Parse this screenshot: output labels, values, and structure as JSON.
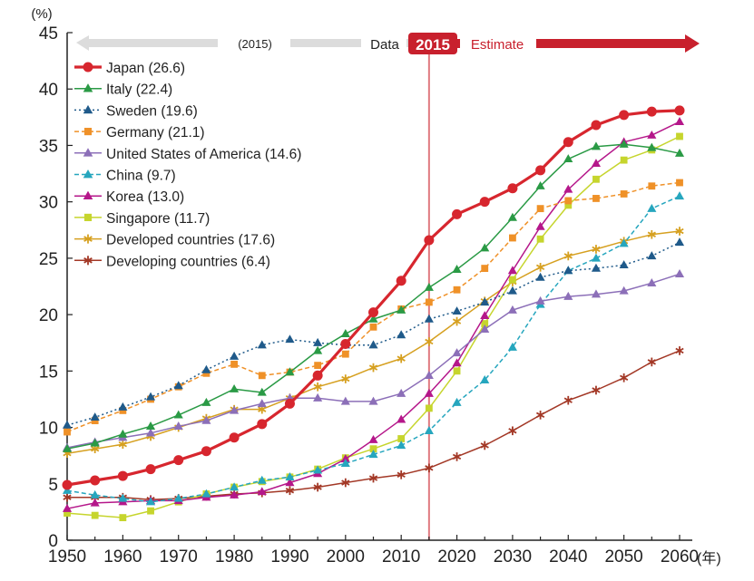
{
  "chart_data": {
    "type": "line",
    "title": "",
    "ylabel": "(%)",
    "xlabel": "(年)",
    "ylim": [
      0,
      45
    ],
    "xlim": [
      1950,
      2060
    ],
    "x_ticks": [
      "1950",
      "1960",
      "1970",
      "1980",
      "1990",
      "2000",
      "2010",
      "2020",
      "2030",
      "2040",
      "2050",
      "2060"
    ],
    "y_ticks": [
      "0",
      "5",
      "10",
      "15",
      "20",
      "25",
      "30",
      "35",
      "40",
      "45"
    ],
    "grid": false,
    "legend_position": "top-left",
    "divider": {
      "year": 2015,
      "label": "2015"
    },
    "banner": {
      "left_label": "(2015)",
      "data_label": "Data",
      "estimate_label": "Estimate"
    },
    "x": [
      1950,
      1955,
      1960,
      1965,
      1970,
      1975,
      1980,
      1985,
      1990,
      1995,
      2000,
      2005,
      2010,
      2015,
      2020,
      2025,
      2030,
      2035,
      2040,
      2045,
      2050,
      2055,
      2060
    ],
    "series": [
      {
        "name": "Japan (26.6)",
        "color": "#d7262e",
        "marker": "circle",
        "dash": "solid",
        "width": 3.2,
        "values": [
          4.9,
          5.3,
          5.7,
          6.3,
          7.1,
          7.9,
          9.1,
          10.3,
          12.1,
          14.6,
          17.4,
          20.2,
          23.0,
          26.6,
          28.9,
          30.0,
          31.2,
          32.8,
          35.3,
          36.8,
          37.7,
          38.0,
          38.1
        ]
      },
      {
        "name": "Italy (22.4)",
        "color": "#2a9a45",
        "marker": "triangle",
        "dash": "solid",
        "width": 1.5,
        "values": [
          8.1,
          8.6,
          9.4,
          10.1,
          11.1,
          12.2,
          13.4,
          13.1,
          14.9,
          16.8,
          18.3,
          19.6,
          20.4,
          22.4,
          24.0,
          25.9,
          28.6,
          31.4,
          33.8,
          34.9,
          35.1,
          34.8,
          34.3
        ]
      },
      {
        "name": "Sweden (19.6)",
        "color": "#1f5a8a",
        "marker": "triangle",
        "dash": "dotted",
        "width": 1.5,
        "values": [
          10.2,
          10.9,
          11.8,
          12.7,
          13.7,
          15.1,
          16.3,
          17.3,
          17.8,
          17.5,
          17.3,
          17.3,
          18.2,
          19.6,
          20.3,
          21.1,
          22.1,
          23.3,
          23.9,
          24.1,
          24.4,
          25.2,
          26.4
        ]
      },
      {
        "name": "Germany (21.1)",
        "color": "#ef9128",
        "marker": "square",
        "dash": "dashed",
        "width": 1.5,
        "values": [
          9.6,
          10.6,
          11.5,
          12.5,
          13.6,
          14.8,
          15.6,
          14.6,
          14.9,
          15.5,
          16.5,
          18.9,
          20.5,
          21.1,
          22.2,
          24.1,
          26.8,
          29.4,
          30.1,
          30.3,
          30.7,
          31.4,
          31.7
        ]
      },
      {
        "name": "United States of America (14.6)",
        "color": "#8c6fb8",
        "marker": "triangle",
        "dash": "solid",
        "width": 1.5,
        "values": [
          8.2,
          8.7,
          9.1,
          9.5,
          10.1,
          10.6,
          11.5,
          12.1,
          12.6,
          12.6,
          12.3,
          12.3,
          13.0,
          14.6,
          16.6,
          18.7,
          20.4,
          21.2,
          21.6,
          21.8,
          22.1,
          22.8,
          23.6
        ]
      },
      {
        "name": "China (9.7)",
        "color": "#26a6be",
        "marker": "triangle",
        "dash": "dashed",
        "width": 1.5,
        "values": [
          4.4,
          4.0,
          3.7,
          3.4,
          3.7,
          4.1,
          4.7,
          5.3,
          5.6,
          6.2,
          6.8,
          7.6,
          8.4,
          9.7,
          12.2,
          14.2,
          17.1,
          20.9,
          23.9,
          25.0,
          26.3,
          29.4,
          30.5
        ]
      },
      {
        "name": "Korea (13.0)",
        "color": "#b5178a",
        "marker": "triangle",
        "dash": "solid",
        "width": 1.5,
        "values": [
          2.8,
          3.3,
          3.4,
          3.5,
          3.5,
          3.8,
          4.0,
          4.3,
          5.1,
          5.9,
          7.2,
          8.9,
          10.7,
          13.0,
          15.7,
          19.9,
          23.9,
          27.8,
          31.1,
          33.4,
          35.3,
          35.9,
          37.1
        ]
      },
      {
        "name": "Singapore (11.7)",
        "color": "#c6d52d",
        "marker": "square",
        "dash": "solid",
        "width": 1.5,
        "values": [
          2.4,
          2.2,
          2.0,
          2.6,
          3.4,
          4.1,
          4.7,
          5.2,
          5.6,
          6.3,
          7.3,
          8.1,
          9.0,
          11.7,
          15.0,
          19.2,
          23.1,
          26.7,
          29.7,
          32.0,
          33.7,
          34.6,
          35.8
        ]
      },
      {
        "name": "Developed countries (17.6)",
        "color": "#d6a020",
        "marker": "asterisk",
        "dash": "solid",
        "width": 1.5,
        "values": [
          7.7,
          8.1,
          8.5,
          9.2,
          10.0,
          10.8,
          11.6,
          11.6,
          12.6,
          13.6,
          14.3,
          15.3,
          16.1,
          17.6,
          19.4,
          21.2,
          22.9,
          24.2,
          25.2,
          25.8,
          26.5,
          27.1,
          27.4
        ]
      },
      {
        "name": "Developing countries (6.4)",
        "color": "#a33826",
        "marker": "asterisk",
        "dash": "solid",
        "width": 1.5,
        "values": [
          3.8,
          3.8,
          3.8,
          3.6,
          3.7,
          3.9,
          4.1,
          4.2,
          4.4,
          4.7,
          5.1,
          5.5,
          5.8,
          6.4,
          7.4,
          8.4,
          9.7,
          11.1,
          12.4,
          13.3,
          14.4,
          15.8,
          16.8
        ]
      }
    ]
  }
}
